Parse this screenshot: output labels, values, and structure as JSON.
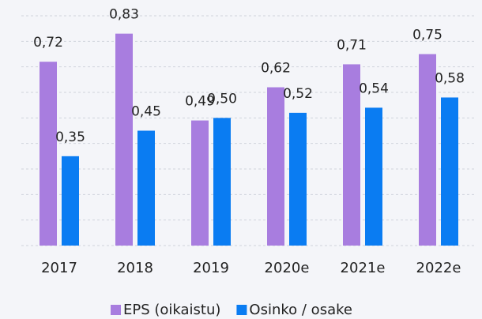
{
  "chart_data": {
    "type": "bar",
    "categories": [
      "2017",
      "2018",
      "2019",
      "2020e",
      "2021e",
      "2022e"
    ],
    "series": [
      {
        "name": "EPS (oikaistu)",
        "color": "#a87ddf",
        "values": [
          0.72,
          0.83,
          0.49,
          0.62,
          0.71,
          0.75
        ],
        "value_labels": [
          "0,72",
          "0,83",
          "0,49",
          "0,62",
          "0,71",
          "0,75"
        ]
      },
      {
        "name": "Osinko / osake",
        "color": "#0a7cf2",
        "values": [
          0.35,
          0.45,
          0.5,
          0.52,
          0.54,
          0.58
        ],
        "value_labels": [
          "0,35",
          "0,45",
          "0,50",
          "0,52",
          "0,54",
          "0,58"
        ]
      }
    ],
    "ylim": [
      0,
      0.9
    ],
    "yticks": [
      0,
      0.1,
      0.2,
      0.3,
      0.4,
      0.5,
      0.6,
      0.7,
      0.8,
      0.9
    ],
    "grid": true,
    "legend": "bottom"
  }
}
